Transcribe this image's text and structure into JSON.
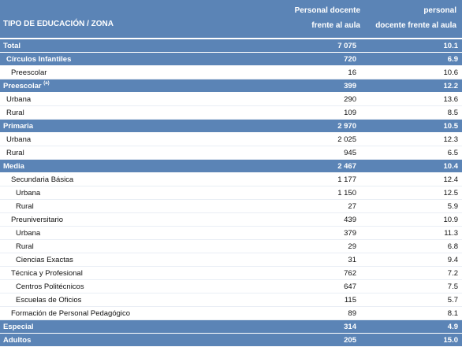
{
  "header": {
    "col1": "TIPO DE EDUCACIÓN / ZONA",
    "col2_line1": "Personal docente",
    "col2_line2": "frente al aula",
    "col3_line1": "Relación alumno/ personal",
    "col3_line2": "docente frente al aula"
  },
  "rows": [
    {
      "label": "Total",
      "note": "",
      "docentes": "7 075",
      "relacion": "10.1",
      "style": "band",
      "level": 0
    },
    {
      "label": "Círculos Infantiles",
      "note": "",
      "docentes": "720",
      "relacion": "6.9",
      "style": "band",
      "level": 1
    },
    {
      "label": "Preescolar",
      "note": "",
      "docentes": "16",
      "relacion": "10.6",
      "style": "plain",
      "level": 2
    },
    {
      "label": "Preescolar",
      "note": "(a)",
      "docentes": "399",
      "relacion": "12.2",
      "style": "band",
      "level": 0
    },
    {
      "label": "Urbana",
      "note": "",
      "docentes": "290",
      "relacion": "13.6",
      "style": "plain",
      "level": 1
    },
    {
      "label": "Rural",
      "note": "",
      "docentes": "109",
      "relacion": "8.5",
      "style": "plain",
      "level": 1
    },
    {
      "label": "Primaria",
      "note": "",
      "docentes": "2 970",
      "relacion": "10.5",
      "style": "band",
      "level": 0
    },
    {
      "label": "Urbana",
      "note": "",
      "docentes": "2 025",
      "relacion": "12.3",
      "style": "plain",
      "level": 1
    },
    {
      "label": "Rural",
      "note": "",
      "docentes": "945",
      "relacion": "6.5",
      "style": "plain",
      "level": 1
    },
    {
      "label": "Media",
      "note": "",
      "docentes": "2 467",
      "relacion": "10.4",
      "style": "band",
      "level": 0
    },
    {
      "label": "Secundaria Básica",
      "note": "",
      "docentes": "1 177",
      "relacion": "12.4",
      "style": "plain",
      "level": 2
    },
    {
      "label": "Urbana",
      "note": "",
      "docentes": "1 150",
      "relacion": "12.5",
      "style": "plain",
      "level": 3
    },
    {
      "label": "Rural",
      "note": "",
      "docentes": "27",
      "relacion": "5.9",
      "style": "plain",
      "level": 3
    },
    {
      "label": "Preuniversitario",
      "note": "",
      "docentes": "439",
      "relacion": "10.9",
      "style": "plain",
      "level": 2
    },
    {
      "label": "Urbana",
      "note": "",
      "docentes": "379",
      "relacion": "11.3",
      "style": "plain",
      "level": 3
    },
    {
      "label": "Rural",
      "note": "",
      "docentes": "29",
      "relacion": "6.8",
      "style": "plain",
      "level": 3
    },
    {
      "label": "Ciencias Exactas",
      "note": "",
      "docentes": "31",
      "relacion": "9.4",
      "style": "plain",
      "level": 3
    },
    {
      "label": "Técnica y Profesional",
      "note": "",
      "docentes": "762",
      "relacion": "7.2",
      "style": "plain",
      "level": 2
    },
    {
      "label": "Centros Politécnicos",
      "note": "",
      "docentes": "647",
      "relacion": "7.5",
      "style": "plain",
      "level": 3
    },
    {
      "label": "Escuelas de Oficios",
      "note": "",
      "docentes": "115",
      "relacion": "5.7",
      "style": "plain",
      "level": 3
    },
    {
      "label": "Formación de Personal Pedagógico",
      "note": "",
      "docentes": "89",
      "relacion": "8.1",
      "style": "plain",
      "level": 2
    },
    {
      "label": "Especial",
      "note": "",
      "docentes": "314",
      "relacion": "4.9",
      "style": "band",
      "level": 0
    },
    {
      "label": "Adultos",
      "note": "",
      "docentes": "205",
      "relacion": "15.0",
      "style": "band",
      "level": 0
    }
  ]
}
